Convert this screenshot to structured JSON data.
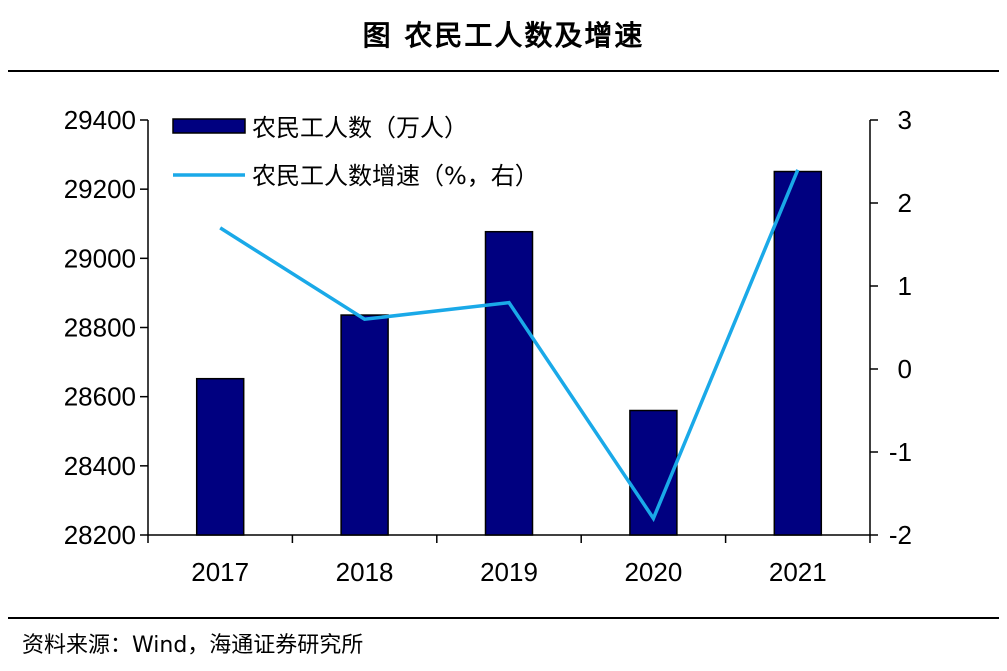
{
  "header": {
    "title": "图  农民工人数及增速"
  },
  "footer": {
    "source": "资料来源：Wind，海通证券研究所"
  },
  "chart_data": {
    "type": "bar",
    "categories": [
      "2017",
      "2018",
      "2019",
      "2020",
      "2021"
    ],
    "series": [
      {
        "name": "农民工人数（万人）",
        "type": "bar",
        "axis": "left",
        "values": [
          28652,
          28836,
          29077,
          28560,
          29251
        ],
        "color": "#000080"
      },
      {
        "name": "农民工人数增速（%，右）",
        "type": "line",
        "axis": "right",
        "values": [
          1.7,
          0.6,
          0.8,
          -1.8,
          2.4
        ],
        "color": "#1AA9E8"
      }
    ],
    "y_left": {
      "ylim": [
        28200,
        29400
      ],
      "ticks": [
        "28200",
        "28400",
        "28600",
        "28800",
        "29000",
        "29200",
        "29400"
      ]
    },
    "y_right": {
      "ylim": [
        -2,
        3
      ],
      "ticks": [
        "-2",
        "-1",
        "0",
        "1",
        "2",
        "3"
      ]
    },
    "legend": "top-left",
    "grid": false
  }
}
